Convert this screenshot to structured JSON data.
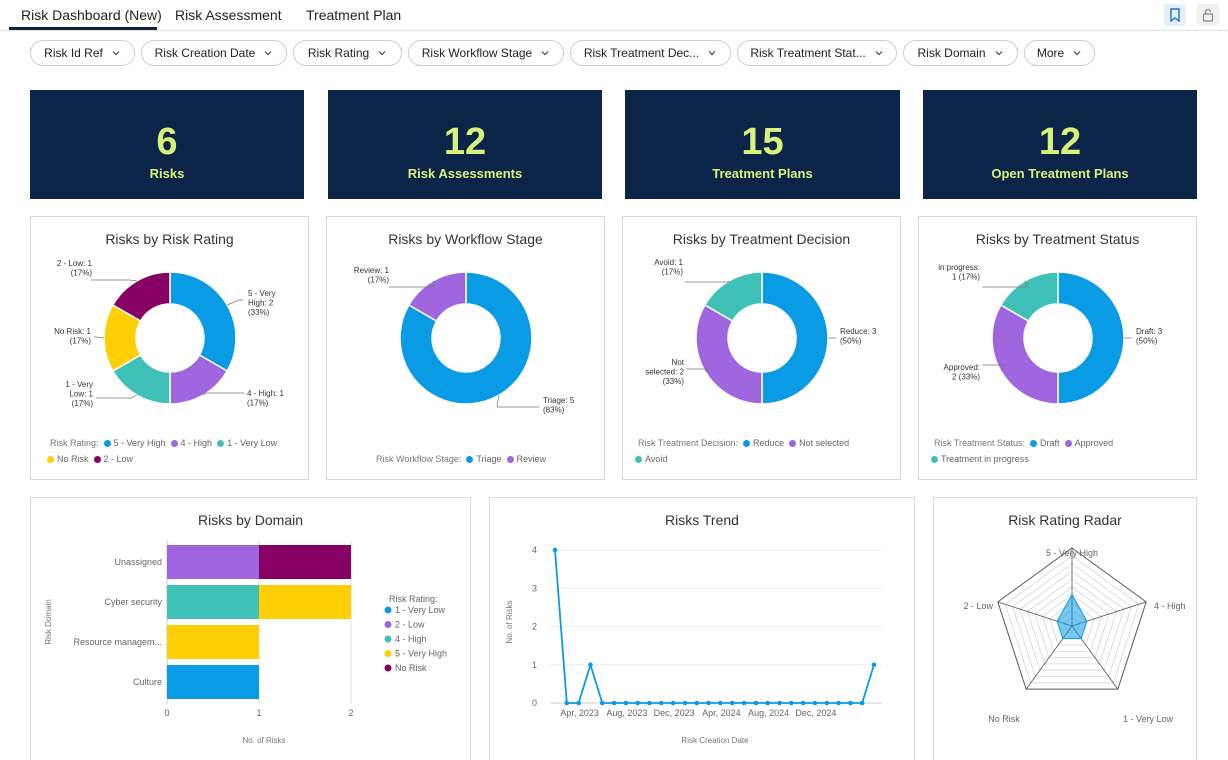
{
  "tabs": [
    {
      "label": "Risk Dashboard (New)"
    },
    {
      "label": "Risk Assessment"
    },
    {
      "label": "Treatment Plan"
    }
  ],
  "filters": [
    {
      "label": "Risk Id Ref"
    },
    {
      "label": "Risk Creation Date"
    },
    {
      "label": "Risk Rating"
    },
    {
      "label": "Risk Workflow Stage"
    },
    {
      "label": "Risk Treatment Dec..."
    },
    {
      "label": "Risk Treatment Stat..."
    },
    {
      "label": "Risk Domain"
    },
    {
      "label": "More"
    }
  ],
  "kpis": [
    {
      "value": "6",
      "label": "Risks"
    },
    {
      "value": "12",
      "label": "Risk Assessments"
    },
    {
      "value": "15",
      "label": "Treatment Plans"
    },
    {
      "value": "12",
      "label": "Open Treatment Plans"
    }
  ],
  "colors": {
    "blue": "#0a9be5",
    "purple": "#a066e0",
    "teal": "#40c1b8",
    "yellow": "#ffcf06",
    "maroon": "#870063",
    "navy": "#0b2447",
    "accent": "#d9f27c"
  },
  "rating_chart": {
    "title": "Risks by Risk Rating",
    "legend_title": "Risk Rating:",
    "chart_data": {
      "type": "pie",
      "slices": [
        {
          "label": "5 - Very High",
          "value": 2,
          "pct": "(33%)",
          "callout": [
            "5 - Very",
            "High: 2",
            "(33%)"
          ]
        },
        {
          "label": "4 - High",
          "value": 1,
          "pct": "(17%)",
          "callout": [
            "4 - High: 1",
            "(17%)"
          ]
        },
        {
          "label": "1 - Very Low",
          "value": 1,
          "pct": "(17%)",
          "callout": [
            "1 - Very",
            "Low: 1",
            "(17%)"
          ]
        },
        {
          "label": "No Risk",
          "value": 1,
          "pct": "(17%)",
          "callout": [
            "No Risk: 1",
            "(17%)"
          ]
        },
        {
          "label": "2 - Low",
          "value": 1,
          "pct": "(17%)",
          "callout": [
            "2 - Low: 1",
            "(17%)"
          ]
        }
      ]
    }
  },
  "workflow_chart": {
    "title": "Risks by Workflow Stage",
    "legend_title": "Risk Workflow Stage:",
    "chart_data": {
      "type": "pie",
      "slices": [
        {
          "label": "Triage",
          "value": 5,
          "callout": [
            "Triage: 5",
            "(83%)"
          ]
        },
        {
          "label": "Review",
          "value": 1,
          "callout": [
            "Review: 1",
            "(17%)"
          ]
        }
      ]
    }
  },
  "decision_chart": {
    "title": "Risks by Treatment Decision",
    "legend_title": "Risk Treatment Decision:",
    "chart_data": {
      "type": "pie",
      "slices": [
        {
          "label": "Reduce",
          "value": 3,
          "callout": [
            "Reduce: 3",
            "(50%)"
          ]
        },
        {
          "label": "Not selected",
          "value": 2,
          "callout": [
            "Not",
            "selected: 2",
            "(33%)"
          ]
        },
        {
          "label": "Avoid",
          "value": 1,
          "callout": [
            "Avoid: 1",
            "(17%)"
          ]
        }
      ]
    }
  },
  "status_chart": {
    "title": "Risks by Treatment Status",
    "legend_title": "Risk Treatment Status:",
    "chart_data": {
      "type": "pie",
      "slices": [
        {
          "label": "Draft",
          "value": 3,
          "callout": [
            "Draft: 3",
            "(50%)"
          ]
        },
        {
          "label": "Approved",
          "value": 2,
          "callout": [
            "Approved:",
            "2 (33%)"
          ]
        },
        {
          "label": "Treatment in progress",
          "value": 1,
          "callout": [
            "in progress:",
            "1 (17%)"
          ]
        }
      ]
    }
  },
  "domain_chart": {
    "title": "Risks by Domain",
    "legend_title": "Risk Rating:",
    "legend_items": [
      "1 - Very Low",
      "2 - Low",
      "4 - High",
      "5 - Very High",
      "No Risk"
    ],
    "chart_data": {
      "type": "bar",
      "orientation": "horizontal",
      "stacked": true,
      "categories": [
        "Unassigned",
        "Cyber security",
        "Resource managem...",
        "Culture"
      ],
      "series": [
        {
          "name": "1 - Very Low",
          "values": [
            0,
            0,
            0,
            1
          ]
        },
        {
          "name": "2 - Low",
          "values": [
            1,
            0,
            0,
            0
          ]
        },
        {
          "name": "4 - High",
          "values": [
            0,
            1,
            0,
            0
          ]
        },
        {
          "name": "5 - Very High",
          "values": [
            0,
            1,
            1,
            0
          ]
        },
        {
          "name": "No Risk",
          "values": [
            1,
            0,
            0,
            0
          ]
        }
      ],
      "xlabel": "No. of Risks",
      "ylabel": "Risk Domain",
      "xlim": [
        0,
        2
      ],
      "xticks": [
        "0",
        "1",
        "2"
      ]
    }
  },
  "trend_chart": {
    "title": "Risks Trend",
    "chart_data": {
      "type": "line",
      "values": [
        4,
        0,
        0,
        1,
        0,
        0,
        0,
        0,
        0,
        0,
        0,
        0,
        0,
        0,
        0,
        0,
        0,
        0,
        0,
        0,
        0,
        0,
        0,
        0,
        0,
        0,
        0,
        1
      ],
      "xticks": [
        "Apr, 2023",
        "Aug, 2023",
        "Dec, 2023",
        "Apr, 2024",
        "Aug, 2024",
        "Dec, 2024"
      ],
      "yticks": [
        "0",
        "1",
        "2",
        "3",
        "4"
      ],
      "ylim": [
        0,
        4
      ],
      "xlabel": "Risk Creation Date",
      "ylabel": "No. of Risks"
    }
  },
  "radar_chart": {
    "title": "Risk Rating Radar",
    "chart_data": {
      "type": "radar",
      "axes": [
        "5 - Very High",
        "4 - High",
        "1 - Very Low",
        "No Risk",
        "2 - Low"
      ],
      "values": [
        2,
        1,
        1,
        1,
        1
      ],
      "max": 5
    }
  }
}
